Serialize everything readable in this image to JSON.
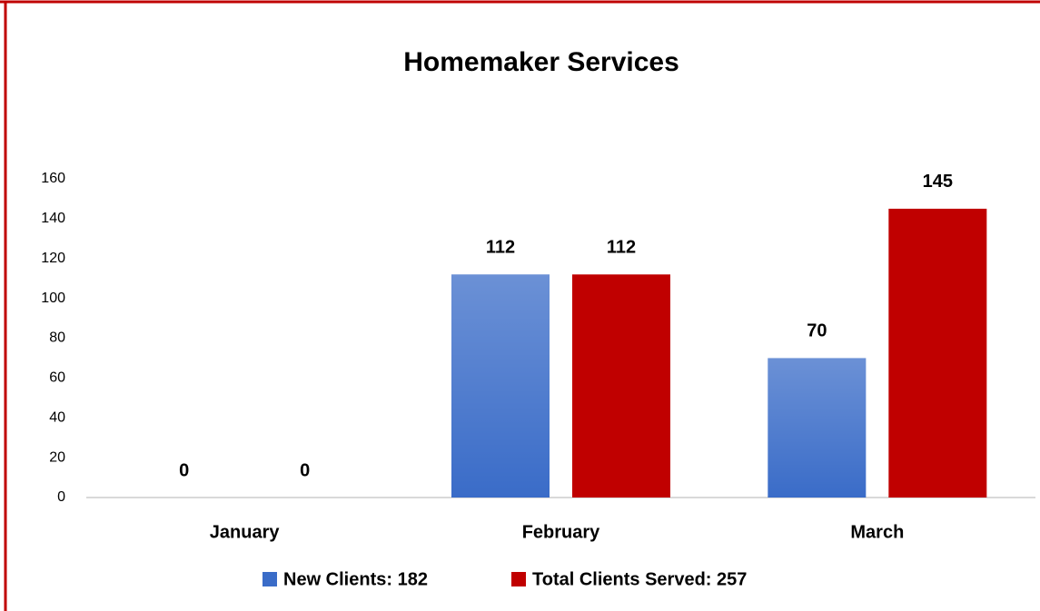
{
  "chart_data": {
    "type": "bar",
    "title": "Homemaker Services",
    "categories": [
      "January",
      "February",
      "March"
    ],
    "series": [
      {
        "name": "New Clients: 182",
        "color": "#3a6cc8",
        "gradient": true,
        "values": [
          0,
          112,
          70
        ]
      },
      {
        "name": "Total Clients Served: 257",
        "color": "#c00000",
        "gradient": false,
        "values": [
          0,
          112,
          145
        ]
      }
    ],
    "ylim": [
      0,
      160
    ],
    "yticks": [
      0,
      20,
      40,
      60,
      80,
      100,
      120,
      140,
      160
    ],
    "grid": false
  }
}
